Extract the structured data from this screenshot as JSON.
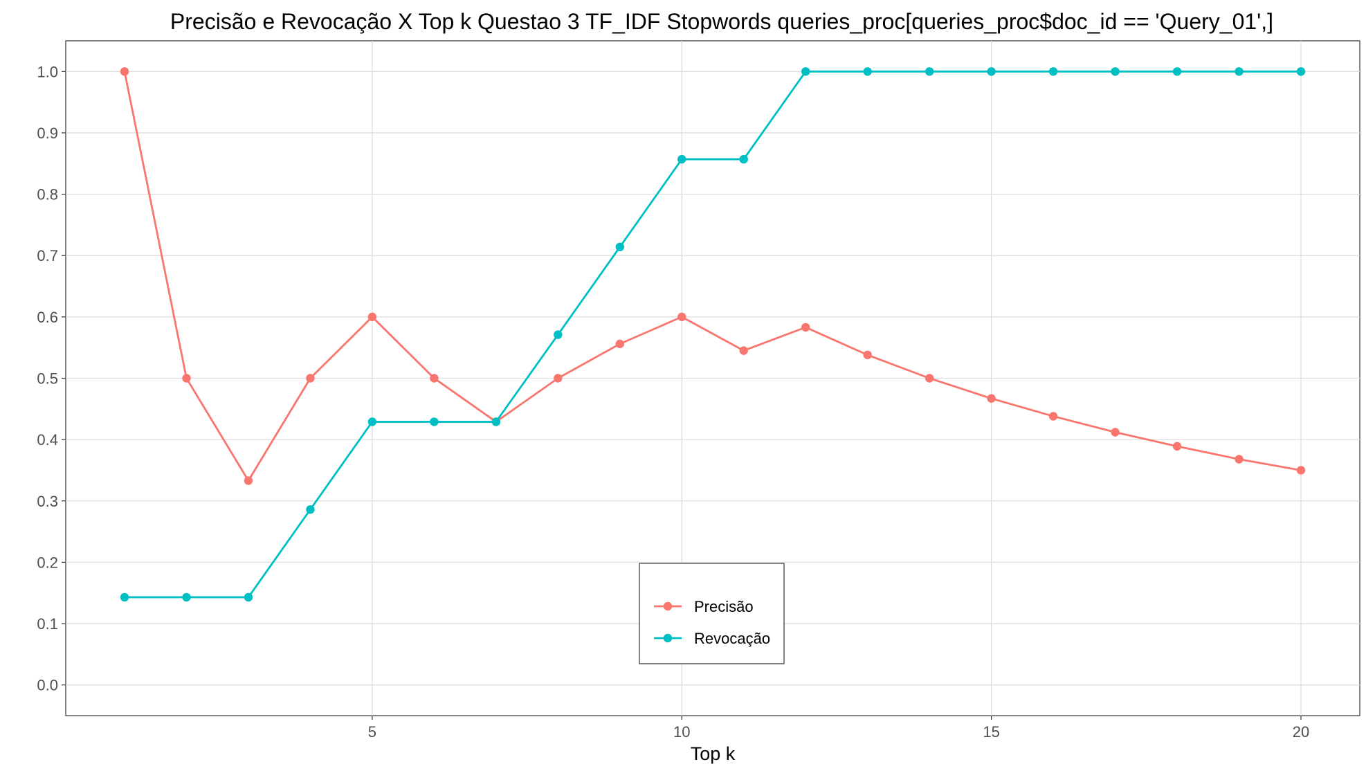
{
  "chart_data": {
    "type": "line",
    "title": "Precisão e Revocação X Top k Questao 3 TF_IDF Stopwords queries_proc[queries_proc$doc_id == 'Query_01',]",
    "xlabel": "Top k",
    "ylabel": "",
    "x": [
      1,
      2,
      3,
      4,
      5,
      6,
      7,
      8,
      9,
      10,
      11,
      12,
      13,
      14,
      15,
      16,
      17,
      18,
      19,
      20
    ],
    "xlim": [
      0.05,
      20.95
    ],
    "ylim": [
      -0.05,
      1.05
    ],
    "x_ticks": [
      5,
      10,
      15,
      20
    ],
    "x_tick_labels": [
      "5",
      "10",
      "15",
      "20"
    ],
    "y_ticks": [
      0.0,
      0.1,
      0.2,
      0.3,
      0.4,
      0.5,
      0.6,
      0.7,
      0.8,
      0.9,
      1.0
    ],
    "y_tick_labels": [
      "0.0",
      "0.1",
      "0.2",
      "0.3",
      "0.4",
      "0.5",
      "0.6",
      "0.7",
      "0.8",
      "0.9",
      "1.0"
    ],
    "grid": true,
    "legend_position": "bottom-center",
    "series": [
      {
        "name": "Precisão",
        "color": "#F8766D",
        "values": [
          1.0,
          0.5,
          0.333,
          0.5,
          0.6,
          0.5,
          0.429,
          0.5,
          0.556,
          0.6,
          0.545,
          0.583,
          0.538,
          0.5,
          0.467,
          0.438,
          0.412,
          0.389,
          0.368,
          0.35
        ]
      },
      {
        "name": "Revocação",
        "color": "#00BFC4",
        "values": [
          0.143,
          0.143,
          0.143,
          0.286,
          0.429,
          0.429,
          0.429,
          0.571,
          0.714,
          0.857,
          0.857,
          1.0,
          1.0,
          1.0,
          1.0,
          1.0,
          1.0,
          1.0,
          1.0,
          1.0
        ]
      }
    ]
  }
}
